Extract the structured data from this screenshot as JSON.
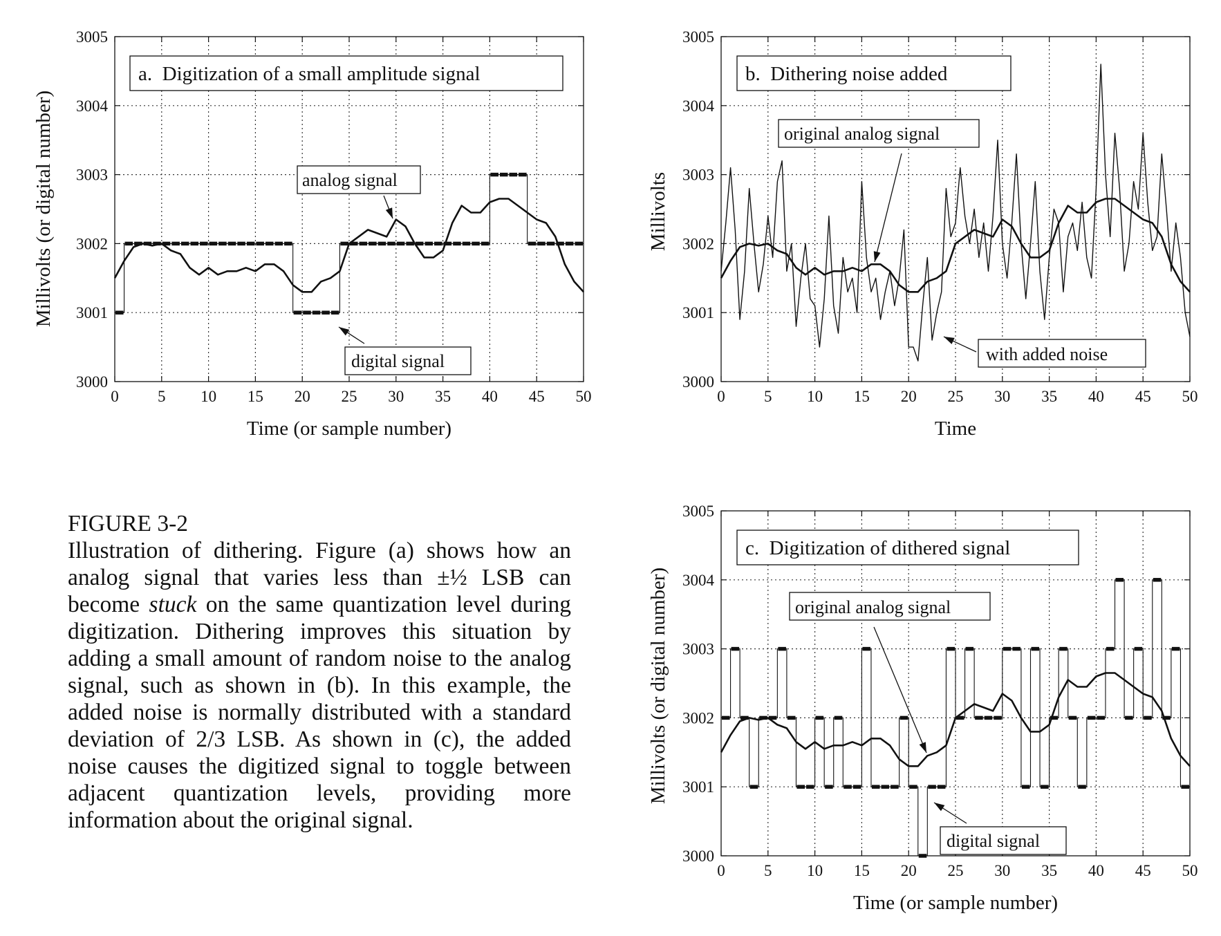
{
  "chart_data": [
    {
      "id": "a",
      "type": "line",
      "title": "a.  Digitization of a small amplitude signal",
      "xlabel": "Time (or sample number)",
      "ylabel": "Millivolts (or digital number)",
      "xlim": [
        0,
        50
      ],
      "ylim": [
        3000,
        3005
      ],
      "xticks": [
        "0",
        "5",
        "10",
        "15",
        "20",
        "25",
        "30",
        "35",
        "40",
        "45",
        "50"
      ],
      "yticks": [
        "3000",
        "3001",
        "3002",
        "3003",
        "3004",
        "3005"
      ],
      "grid": true,
      "annotations": [
        {
          "text": "analog signal",
          "target": [
            30,
            3002.35
          ]
        },
        {
          "text": "digital signal",
          "target": [
            24,
            3000.95
          ]
        }
      ],
      "series": [
        {
          "name": "analog signal",
          "style": "thick-line",
          "x": [
            0,
            1,
            2,
            3,
            4,
            5,
            6,
            7,
            8,
            9,
            10,
            11,
            12,
            13,
            14,
            15,
            16,
            17,
            18,
            19,
            20,
            21,
            22,
            23,
            24,
            25,
            26,
            27,
            28,
            29,
            30,
            31,
            32,
            33,
            34,
            35,
            36,
            37,
            38,
            39,
            40,
            41,
            42,
            43,
            44,
            45,
            46,
            47,
            48,
            49,
            50
          ],
          "y": [
            3001.5,
            3001.75,
            3001.95,
            3002.0,
            3001.97,
            3002.0,
            3001.9,
            3001.85,
            3001.65,
            3001.55,
            3001.65,
            3001.55,
            3001.6,
            3001.6,
            3001.65,
            3001.6,
            3001.7,
            3001.7,
            3001.6,
            3001.4,
            3001.3,
            3001.3,
            3001.45,
            3001.5,
            3001.6,
            3002.0,
            3002.1,
            3002.2,
            3002.15,
            3002.1,
            3002.35,
            3002.25,
            3002.0,
            3001.8,
            3001.8,
            3001.9,
            3002.3,
            3002.55,
            3002.45,
            3002.45,
            3002.6,
            3002.65,
            3002.65,
            3002.55,
            3002.45,
            3002.35,
            3002.3,
            3002.1,
            3001.7,
            3001.45,
            3001.3
          ]
        },
        {
          "name": "digital signal",
          "style": "quantized",
          "x": [
            0,
            1,
            2,
            3,
            4,
            5,
            6,
            7,
            8,
            9,
            10,
            11,
            12,
            13,
            14,
            15,
            16,
            17,
            18,
            19,
            20,
            21,
            22,
            23,
            24,
            25,
            26,
            27,
            28,
            29,
            30,
            31,
            32,
            33,
            34,
            35,
            36,
            37,
            38,
            39,
            40,
            41,
            42,
            43,
            44,
            45,
            46,
            47,
            48,
            49
          ],
          "y": [
            3001,
            3002,
            3002,
            3002,
            3002,
            3002,
            3002,
            3002,
            3002,
            3002,
            3002,
            3002,
            3002,
            3002,
            3002,
            3002,
            3002,
            3002,
            3002,
            3001,
            3001,
            3001,
            3001,
            3001,
            3002,
            3002,
            3002,
            3002,
            3002,
            3002,
            3002,
            3002,
            3002,
            3002,
            3002,
            3002,
            3002,
            3002,
            3002,
            3002,
            3003,
            3003,
            3003,
            3003,
            3002,
            3002,
            3002,
            3002,
            3002,
            3002
          ]
        }
      ]
    },
    {
      "id": "b",
      "type": "line",
      "title": "b.  Dithering noise added",
      "xlabel": "Time",
      "ylabel": "Millivolts",
      "xlim": [
        0,
        50
      ],
      "ylim": [
        3000,
        3005
      ],
      "xticks": [
        "0",
        "5",
        "10",
        "15",
        "20",
        "25",
        "30",
        "35",
        "40",
        "45",
        "50"
      ],
      "yticks": [
        "3000",
        "3001",
        "3002",
        "3003",
        "3004",
        "3005"
      ],
      "grid": true,
      "annotations": [
        {
          "text": "original analog signal",
          "target": [
            16.2,
            3001.72
          ]
        },
        {
          "text": "with added noise",
          "target": [
            24,
            3000.65
          ]
        }
      ],
      "series": [
        {
          "name": "original analog signal",
          "style": "thick-line",
          "x": [
            0,
            1,
            2,
            3,
            4,
            5,
            6,
            7,
            8,
            9,
            10,
            11,
            12,
            13,
            14,
            15,
            16,
            17,
            18,
            19,
            20,
            21,
            22,
            23,
            24,
            25,
            26,
            27,
            28,
            29,
            30,
            31,
            32,
            33,
            34,
            35,
            36,
            37,
            38,
            39,
            40,
            41,
            42,
            43,
            44,
            45,
            46,
            47,
            48,
            49,
            50
          ],
          "y": [
            3001.5,
            3001.75,
            3001.95,
            3002.0,
            3001.97,
            3002.0,
            3001.9,
            3001.85,
            3001.65,
            3001.55,
            3001.65,
            3001.55,
            3001.6,
            3001.6,
            3001.65,
            3001.6,
            3001.7,
            3001.7,
            3001.6,
            3001.4,
            3001.3,
            3001.3,
            3001.45,
            3001.5,
            3001.6,
            3002.0,
            3002.1,
            3002.2,
            3002.15,
            3002.1,
            3002.35,
            3002.25,
            3002.0,
            3001.8,
            3001.8,
            3001.9,
            3002.3,
            3002.55,
            3002.45,
            3002.45,
            3002.6,
            3002.65,
            3002.65,
            3002.55,
            3002.45,
            3002.35,
            3002.3,
            3002.1,
            3001.7,
            3001.45,
            3001.3
          ]
        },
        {
          "name": "with added noise",
          "style": "thin-line",
          "x": [
            0,
            0.5,
            1,
            1.5,
            2,
            2.5,
            3,
            3.5,
            4,
            4.5,
            5,
            5.5,
            6,
            6.5,
            7,
            7.5,
            8,
            8.5,
            9,
            9.5,
            10,
            10.5,
            11,
            11.5,
            12,
            12.5,
            13,
            13.5,
            14,
            14.5,
            15,
            15.5,
            16,
            16.5,
            17,
            17.5,
            18,
            18.5,
            19,
            19.5,
            20,
            20.5,
            21,
            21.5,
            22,
            22.5,
            23,
            23.5,
            24,
            24.5,
            25,
            25.5,
            26,
            26.5,
            27,
            27.5,
            28,
            28.5,
            29,
            29.5,
            30,
            30.5,
            31,
            31.5,
            32,
            32.5,
            33,
            33.5,
            34,
            34.5,
            35,
            35.5,
            36,
            36.5,
            37,
            37.5,
            38,
            38.5,
            39,
            39.5,
            40,
            40.5,
            41,
            41.5,
            42,
            42.5,
            43,
            43.5,
            44,
            44.5,
            45,
            45.5,
            46,
            46.5,
            47,
            47.5,
            48,
            48.5,
            49,
            49.5,
            50
          ],
          "y": [
            3001.6,
            3002.3,
            3003.1,
            3002.2,
            3000.9,
            3001.6,
            3002.8,
            3002.0,
            3001.3,
            3001.7,
            3002.4,
            3001.8,
            3002.9,
            3003.2,
            3001.6,
            3002.0,
            3000.8,
            3001.5,
            3002.0,
            3001.2,
            3001.1,
            3000.5,
            3001.2,
            3002.4,
            3001.1,
            3000.7,
            3001.8,
            3001.3,
            3001.5,
            3001.0,
            3002.9,
            3001.8,
            3001.3,
            3001.5,
            3000.9,
            3001.3,
            3001.6,
            3001.1,
            3001.5,
            3002.2,
            3000.5,
            3000.5,
            3000.3,
            3001.1,
            3001.8,
            3000.6,
            3001.0,
            3001.3,
            3002.8,
            3002.1,
            3002.3,
            3003.1,
            3002.4,
            3002.0,
            3002.5,
            3001.8,
            3002.3,
            3001.6,
            3002.4,
            3003.5,
            3002.0,
            3001.5,
            3002.3,
            3003.3,
            3002.0,
            3001.2,
            3002.0,
            3002.9,
            3001.6,
            3000.9,
            3001.8,
            3002.5,
            3002.3,
            3001.3,
            3002.1,
            3002.3,
            3001.9,
            3002.6,
            3001.8,
            3001.5,
            3002.8,
            3004.6,
            3003.0,
            3002.1,
            3003.6,
            3002.8,
            3001.6,
            3002.0,
            3002.9,
            3002.5,
            3003.6,
            3002.6,
            3001.9,
            3002.1,
            3003.3,
            3002.5,
            3001.6,
            3002.3,
            3001.8,
            3001.0,
            3000.65
          ]
        }
      ]
    },
    {
      "id": "c",
      "type": "line",
      "title": "c.  Digitization of dithered signal",
      "xlabel": "Time (or sample number)",
      "ylabel": "Millivolts (or digital number)",
      "xlim": [
        0,
        50
      ],
      "ylim": [
        3000,
        3005
      ],
      "xticks": [
        "0",
        "5",
        "10",
        "15",
        "20",
        "25",
        "30",
        "35",
        "40",
        "45",
        "50"
      ],
      "yticks": [
        "3000",
        "3001",
        "3002",
        "3003",
        "3004",
        "3005"
      ],
      "grid": true,
      "annotations": [
        {
          "text": "original analog signal",
          "target": [
            22,
            3001.45
          ]
        },
        {
          "text": "digital signal",
          "target": [
            22.5,
            3000.85
          ]
        }
      ],
      "series": [
        {
          "name": "original analog signal",
          "style": "thick-line",
          "x": [
            0,
            1,
            2,
            3,
            4,
            5,
            6,
            7,
            8,
            9,
            10,
            11,
            12,
            13,
            14,
            15,
            16,
            17,
            18,
            19,
            20,
            21,
            22,
            23,
            24,
            25,
            26,
            27,
            28,
            29,
            30,
            31,
            32,
            33,
            34,
            35,
            36,
            37,
            38,
            39,
            40,
            41,
            42,
            43,
            44,
            45,
            46,
            47,
            48,
            49,
            50
          ],
          "y": [
            3001.5,
            3001.75,
            3001.95,
            3002.0,
            3001.97,
            3002.0,
            3001.9,
            3001.85,
            3001.65,
            3001.55,
            3001.65,
            3001.55,
            3001.6,
            3001.6,
            3001.65,
            3001.6,
            3001.7,
            3001.7,
            3001.6,
            3001.4,
            3001.3,
            3001.3,
            3001.45,
            3001.5,
            3001.6,
            3002.0,
            3002.1,
            3002.2,
            3002.15,
            3002.1,
            3002.35,
            3002.25,
            3002.0,
            3001.8,
            3001.8,
            3001.9,
            3002.3,
            3002.55,
            3002.45,
            3002.45,
            3002.6,
            3002.65,
            3002.65,
            3002.55,
            3002.45,
            3002.35,
            3002.3,
            3002.1,
            3001.7,
            3001.45,
            3001.3
          ]
        },
        {
          "name": "digital signal",
          "style": "quantized",
          "x": [
            0,
            1,
            2,
            3,
            4,
            5,
            6,
            7,
            8,
            9,
            10,
            11,
            12,
            13,
            14,
            15,
            16,
            17,
            18,
            19,
            20,
            21,
            22,
            23,
            24,
            25,
            26,
            27,
            28,
            29,
            30,
            31,
            32,
            33,
            34,
            35,
            36,
            37,
            38,
            39,
            40,
            41,
            42,
            43,
            44,
            45,
            46,
            47,
            48,
            49
          ],
          "y": [
            3002,
            3003,
            3002,
            3001,
            3002,
            3002,
            3003,
            3002,
            3001,
            3001,
            3002,
            3001,
            3002,
            3001,
            3001,
            3003,
            3001,
            3001,
            3001,
            3002,
            3001,
            3000,
            3001,
            3001,
            3003,
            3002,
            3003,
            3002,
            3002,
            3002,
            3003,
            3003,
            3001,
            3003,
            3001,
            3002,
            3003,
            3002,
            3001,
            3002,
            3002,
            3003,
            3004,
            3002,
            3003,
            3002,
            3004,
            3002,
            3003,
            3001
          ]
        }
      ]
    }
  ],
  "caption": {
    "heading": "FIGURE 3-2",
    "body_before": "Illustration of dithering.  Figure (a) shows how an analog signal that varies less than ±½ LSB can become ",
    "body_emphasis": "stuck",
    "body_after": " on the same quantization level during digitization.  Dithering improves this situation by adding a small amount of random noise to the analog signal, such as shown in (b). In this example, the added noise is normally distributed with a standard deviation of 2/3 LSB. As shown in (c), the added noise causes the digitized signal to toggle between adjacent quantization levels, providing more information about the original signal."
  }
}
